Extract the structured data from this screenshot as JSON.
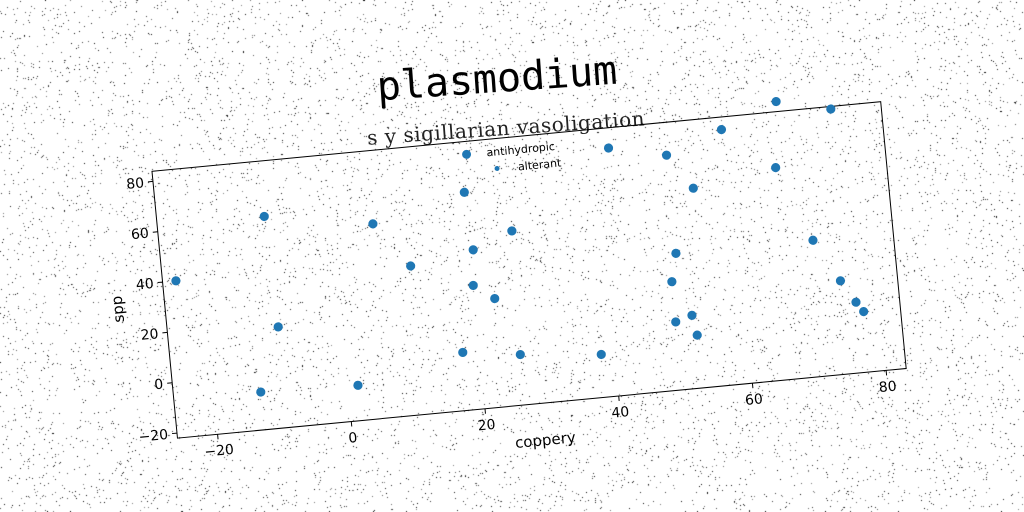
{
  "chart_data": {
    "type": "scatter",
    "title": "plasmodium",
    "subtitle": "s y sigillarian vasoligation",
    "xlabel": "coppery",
    "ylabel": "spp",
    "xlim": [
      -26,
      83
    ],
    "ylim": [
      -22,
      84
    ],
    "xticks": [
      -20,
      0,
      20,
      40,
      60,
      80
    ],
    "yticks": [
      -20,
      0,
      20,
      40,
      60,
      80
    ],
    "grid": false,
    "legend_position": "top-center",
    "marker_color": "#1f77b4",
    "series": [
      {
        "name": "antihydropic",
        "points": [
          [
            -24,
            40
          ],
          [
            -10,
            62
          ],
          [
            6,
            55
          ],
          [
            11,
            37
          ],
          [
            20,
            64
          ],
          [
            20.5,
            41
          ],
          [
            20,
            27
          ],
          [
            23,
            21
          ],
          [
            26.5,
            47
          ],
          [
            17.5,
            1
          ],
          [
            26,
            -2
          ],
          [
            38,
            -5
          ],
          [
            42,
            76
          ],
          [
            50.5,
            71
          ],
          [
            54,
            57
          ],
          [
            49.5,
            21
          ],
          [
            50.5,
            32
          ],
          [
            49.5,
            5
          ],
          [
            52,
            7
          ],
          [
            52.5,
            -1
          ],
          [
            59,
            79
          ],
          [
            67.5,
            88
          ],
          [
            66.5,
            62
          ],
          [
            75.5,
            83
          ],
          [
            71,
            32
          ],
          [
            74.5,
            15
          ],
          [
            76.5,
            6
          ],
          [
            77.5,
            2
          ],
          [
            -13,
            -7
          ],
          [
            1.5,
            -8
          ],
          [
            -9.5,
            18
          ]
        ]
      },
      {
        "name": "alterant",
        "points": []
      }
    ]
  }
}
